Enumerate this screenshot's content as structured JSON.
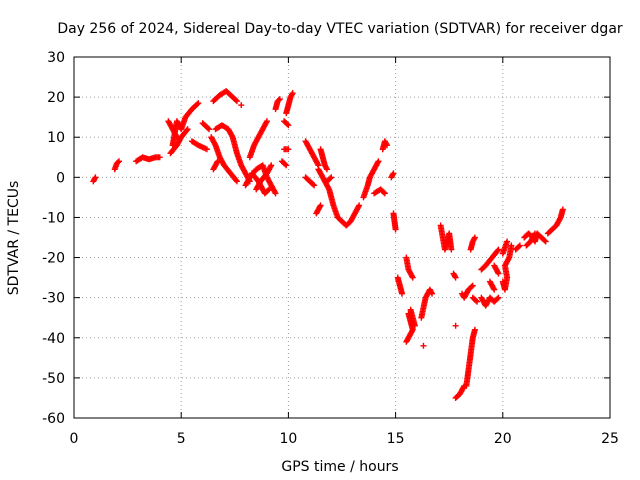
{
  "chart_data": {
    "type": "scatter",
    "title": "Day 256 of 2024, Sidereal Day-to-day VTEC variation (SDTVAR) for receiver dgar",
    "xlabel": "GPS time / hours",
    "ylabel": "SDTVAR / TECUs",
    "xlim": [
      0,
      25
    ],
    "ylim": [
      -60,
      30
    ],
    "xticks": [
      0,
      5,
      10,
      15,
      20,
      25
    ],
    "yticks": [
      -60,
      -50,
      -40,
      -30,
      -20,
      -10,
      0,
      10,
      20,
      30
    ],
    "xtick_labels": [
      "0",
      "5",
      "10",
      "15",
      "20",
      "25"
    ],
    "ytick_labels": [
      "-60",
      "-50",
      "-40",
      "-30",
      "-20",
      "-10",
      "0",
      "10",
      "20",
      "30"
    ],
    "grid": true,
    "marker": "+",
    "color": "#ff0000",
    "series": [
      {
        "name": "SDTVAR",
        "segments": [
          [
            [
              0.9,
              -1
            ],
            [
              1.0,
              0
            ]
          ],
          [
            [
              1.9,
              2
            ],
            [
              2.0,
              3.5
            ],
            [
              2.1,
              4
            ]
          ],
          [
            [
              2.9,
              4
            ],
            [
              3.2,
              5
            ],
            [
              3.5,
              4.5
            ],
            [
              3.8,
              5
            ],
            [
              4.0,
              5
            ]
          ],
          [
            [
              4.6,
              8
            ],
            [
              4.8,
              14
            ],
            [
              5.0,
              12
            ],
            [
              5.2,
              15
            ],
            [
              5.5,
              17
            ],
            [
              5.8,
              18.5
            ]
          ],
          [
            [
              4.4,
              14
            ],
            [
              4.6,
              12
            ],
            [
              4.8,
              10
            ]
          ],
          [
            [
              4.5,
              6
            ],
            [
              4.8,
              8
            ],
            [
              5.0,
              10
            ],
            [
              5.3,
              12
            ]
          ],
          [
            [
              5.5,
              9
            ],
            [
              5.8,
              8
            ],
            [
              6.2,
              7
            ]
          ],
          [
            [
              6.0,
              13.5
            ],
            [
              6.3,
              12
            ]
          ],
          [
            [
              6.5,
              19
            ],
            [
              6.8,
              20.5
            ],
            [
              7.1,
              21.5
            ],
            [
              7.4,
              20
            ],
            [
              7.6,
              19
            ]
          ],
          [
            [
              7.8,
              18
            ]
          ],
          [
            [
              6.6,
              12
            ],
            [
              6.9,
              13
            ],
            [
              7.2,
              12
            ],
            [
              7.4,
              10
            ],
            [
              7.6,
              6
            ],
            [
              7.8,
              3
            ],
            [
              8.0,
              1
            ],
            [
              8.2,
              -1
            ]
          ],
          [
            [
              6.4,
              10
            ],
            [
              6.6,
              8
            ],
            [
              6.8,
              5
            ],
            [
              7.0,
              3
            ],
            [
              7.3,
              1
            ],
            [
              7.6,
              -1
            ]
          ],
          [
            [
              6.5,
              2
            ],
            [
              6.7,
              4
            ]
          ],
          [
            [
              8.2,
              5
            ],
            [
              8.4,
              8
            ],
            [
              8.6,
              10
            ],
            [
              8.8,
              12
            ],
            [
              9.0,
              14
            ]
          ],
          [
            [
              8.0,
              -2
            ],
            [
              8.2,
              0
            ],
            [
              8.5,
              2
            ],
            [
              8.8,
              3
            ],
            [
              9.0,
              0
            ],
            [
              9.2,
              -2
            ],
            [
              9.4,
              -4
            ]
          ],
          [
            [
              8.5,
              -3
            ],
            [
              8.7,
              -1
            ],
            [
              9.0,
              1
            ],
            [
              9.2,
              3
            ]
          ],
          [
            [
              8.3,
              1
            ],
            [
              8.6,
              -1
            ],
            [
              8.9,
              -4
            ],
            [
              9.1,
              -3
            ]
          ],
          [
            [
              9.4,
              17
            ],
            [
              9.5,
              19
            ],
            [
              9.6,
              19.5
            ]
          ],
          [
            [
              9.9,
              16
            ],
            [
              10.0,
              18
            ],
            [
              10.1,
              20
            ],
            [
              10.2,
              21
            ]
          ],
          [
            [
              9.8,
              14
            ],
            [
              10.0,
              13
            ]
          ],
          [
            [
              9.8,
              7
            ],
            [
              10.0,
              7
            ]
          ],
          [
            [
              9.7,
              4
            ],
            [
              9.9,
              3
            ]
          ],
          [
            [
              10.8,
              9
            ],
            [
              11.0,
              7
            ],
            [
              11.2,
              5
            ],
            [
              11.4,
              3
            ]
          ],
          [
            [
              11.5,
              7
            ],
            [
              11.6,
              5
            ],
            [
              11.7,
              3
            ],
            [
              11.8,
              2
            ]
          ],
          [
            [
              10.8,
              0
            ],
            [
              11.0,
              -1
            ],
            [
              11.2,
              -2
            ]
          ],
          [
            [
              11.4,
              2
            ],
            [
              11.6,
              0
            ],
            [
              11.9,
              -3
            ],
            [
              12.1,
              -7
            ],
            [
              12.3,
              -10
            ],
            [
              12.5,
              -11
            ],
            [
              12.7,
              -12
            ],
            [
              12.9,
              -11
            ],
            [
              13.1,
              -9
            ],
            [
              13.3,
              -7
            ]
          ],
          [
            [
              11.3,
              -9
            ],
            [
              11.5,
              -7
            ]
          ],
          [
            [
              11.8,
              -1
            ],
            [
              12.0,
              0
            ]
          ],
          [
            [
              13.5,
              -5
            ],
            [
              13.7,
              -2
            ],
            [
              13.8,
              0
            ],
            [
              14.0,
              2
            ],
            [
              14.2,
              4
            ]
          ],
          [
            [
              14.0,
              -4
            ],
            [
              14.3,
              -3
            ],
            [
              14.5,
              -4
            ]
          ],
          [
            [
              14.4,
              7
            ],
            [
              14.5,
              9
            ],
            [
              14.6,
              8
            ]
          ],
          [
            [
              14.8,
              0
            ],
            [
              14.9,
              1
            ]
          ],
          [
            [
              14.9,
              -9
            ],
            [
              14.95,
              -11
            ],
            [
              15.0,
              -13
            ]
          ],
          [
            [
              15.1,
              -25
            ],
            [
              15.2,
              -27
            ],
            [
              15.3,
              -29
            ]
          ],
          [
            [
              15.5,
              -20
            ],
            [
              15.6,
              -23
            ],
            [
              15.8,
              -25
            ]
          ],
          [
            [
              15.6,
              -34
            ],
            [
              15.7,
              -36
            ],
            [
              15.8,
              -38
            ],
            [
              15.6,
              -40
            ],
            [
              15.5,
              -41
            ]
          ],
          [
            [
              15.7,
              -33
            ],
            [
              15.9,
              -37
            ]
          ],
          [
            [
              16.2,
              -35
            ],
            [
              16.4,
              -30
            ],
            [
              16.6,
              -28
            ],
            [
              16.7,
              -29
            ]
          ],
          [
            [
              16.3,
              -42
            ]
          ],
          [
            [
              17.1,
              -12
            ],
            [
              17.2,
              -15
            ],
            [
              17.3,
              -18
            ],
            [
              17.5,
              -14
            ],
            [
              17.6,
              -18
            ]
          ],
          [
            [
              17.7,
              -24
            ],
            [
              17.8,
              -25
            ]
          ],
          [
            [
              17.8,
              -37
            ]
          ],
          [
            [
              17.8,
              -55
            ],
            [
              18.0,
              -54
            ],
            [
              18.2,
              -52
            ]
          ],
          [
            [
              18.1,
              -29
            ],
            [
              18.2,
              -30
            ],
            [
              18.4,
              -28
            ],
            [
              18.6,
              -27
            ]
          ],
          [
            [
              18.3,
              -52
            ],
            [
              18.4,
              -48
            ],
            [
              18.5,
              -44
            ],
            [
              18.6,
              -40
            ],
            [
              18.7,
              -38
            ]
          ],
          [
            [
              18.5,
              -18
            ],
            [
              18.6,
              -16
            ],
            [
              18.7,
              -15
            ]
          ],
          [
            [
              18.6,
              -30
            ],
            [
              18.8,
              -31
            ]
          ],
          [
            [
              19.0,
              -23
            ],
            [
              19.2,
              -22
            ],
            [
              19.5,
              -20
            ],
            [
              19.8,
              -18
            ]
          ],
          [
            [
              19.0,
              -30
            ],
            [
              19.2,
              -32
            ],
            [
              19.4,
              -30
            ],
            [
              19.6,
              -31
            ],
            [
              19.8,
              -30
            ]
          ],
          [
            [
              19.4,
              -26
            ],
            [
              19.6,
              -28
            ]
          ],
          [
            [
              19.6,
              -22
            ],
            [
              19.8,
              -24
            ]
          ],
          [
            [
              20.0,
              -26
            ],
            [
              20.1,
              -28
            ],
            [
              20.2,
              -25
            ],
            [
              20.1,
              -22
            ],
            [
              20.3,
              -20
            ],
            [
              20.4,
              -17
            ]
          ],
          [
            [
              20.0,
              -19
            ],
            [
              20.2,
              -16
            ]
          ],
          [
            [
              20.6,
              -18
            ],
            [
              20.8,
              -17
            ]
          ],
          [
            [
              21.0,
              -15
            ],
            [
              21.2,
              -14
            ],
            [
              21.4,
              -15
            ],
            [
              21.5,
              -16
            ],
            [
              21.6,
              -14
            ],
            [
              21.8,
              -15
            ],
            [
              22.0,
              -16
            ]
          ],
          [
            [
              21.1,
              -17
            ],
            [
              21.3,
              -16
            ],
            [
              21.5,
              -14
            ]
          ],
          [
            [
              22.1,
              -14
            ],
            [
              22.3,
              -13
            ],
            [
              22.5,
              -12
            ],
            [
              22.7,
              -10
            ],
            [
              22.8,
              -8
            ]
          ]
        ]
      }
    ]
  }
}
